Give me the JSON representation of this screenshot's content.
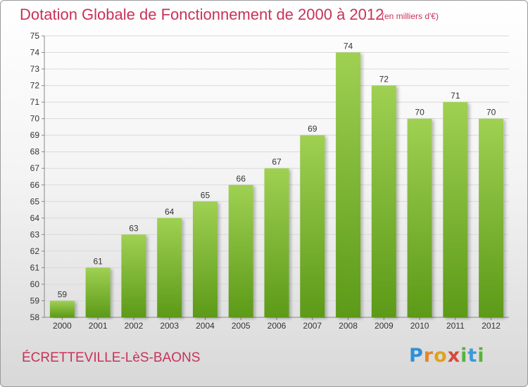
{
  "header": {
    "title": "Dotation Globale de Fonctionnement de 2000 à 2012",
    "unit": "(en milliers d'€)"
  },
  "footer": {
    "commune": "ÉCRETTEVILLE-LèS-BAONS",
    "logo_letters": [
      "P",
      "r",
      "o",
      "x",
      "i",
      "t",
      "i"
    ]
  },
  "colors": {
    "title": "#c8325a",
    "bar_top": "#9fd052",
    "bar_bottom": "#5c9a18",
    "grid": "#d9d9d9"
  },
  "chart_data": {
    "type": "bar",
    "categories": [
      "2000",
      "2001",
      "2002",
      "2003",
      "2004",
      "2005",
      "2006",
      "2007",
      "2008",
      "2009",
      "2010",
      "2011",
      "2012"
    ],
    "values": [
      59,
      61,
      63,
      64,
      65,
      66,
      67,
      69,
      74,
      72,
      70,
      71,
      70
    ],
    "title": "Dotation Globale de Fonctionnement de 2000 à 2012",
    "xlabel": "",
    "ylabel": "",
    "ylim": [
      58,
      75
    ],
    "yticks": [
      58,
      59,
      60,
      61,
      62,
      63,
      64,
      65,
      66,
      67,
      68,
      69,
      70,
      71,
      72,
      73,
      74,
      75
    ],
    "grid": true,
    "data_labels": true
  }
}
